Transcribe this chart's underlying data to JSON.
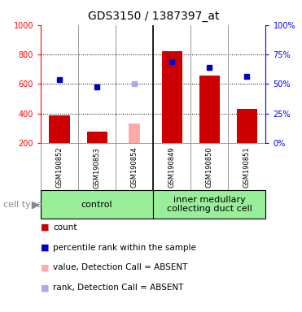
{
  "title": "GDS3150 / 1387397_at",
  "samples": [
    "GSM190852",
    "GSM190853",
    "GSM190854",
    "GSM190849",
    "GSM190850",
    "GSM190851"
  ],
  "count_values": [
    390,
    280,
    null,
    825,
    660,
    430
  ],
  "count_absent": [
    null,
    null,
    335,
    null,
    null,
    null
  ],
  "percentile_values": [
    630,
    580,
    null,
    750,
    710,
    650
  ],
  "percentile_absent": [
    null,
    null,
    600,
    null,
    null,
    null
  ],
  "ylim_left": [
    200,
    1000
  ],
  "ylim_right": [
    0,
    100
  ],
  "left_ticks": [
    200,
    400,
    600,
    800,
    1000
  ],
  "right_ticks": [
    0,
    25,
    50,
    75,
    100
  ],
  "bar_color_present": "#cc0000",
  "bar_color_absent": "#ffaaaa",
  "dot_color_present": "#0000cc",
  "dot_color_absent": "#aaaaee",
  "bar_width": 0.55,
  "background_color": "#ffffff",
  "plot_bg_color": "#d8d8d8",
  "group_bg_color": "#99ee99",
  "group_border_color": "#000000",
  "legend_items": [
    {
      "label": "count",
      "color": "#cc0000"
    },
    {
      "label": "percentile rank within the sample",
      "color": "#0000cc"
    },
    {
      "label": "value, Detection Call = ABSENT",
      "color": "#ffaaaa"
    },
    {
      "label": "rank, Detection Call = ABSENT",
      "color": "#aaaaee"
    }
  ],
  "group_label_fontsize": 8,
  "tick_label_fontsize": 7,
  "title_fontsize": 10,
  "sample_fontsize": 6,
  "legend_fontsize": 7.5,
  "cell_type_fontsize": 8
}
